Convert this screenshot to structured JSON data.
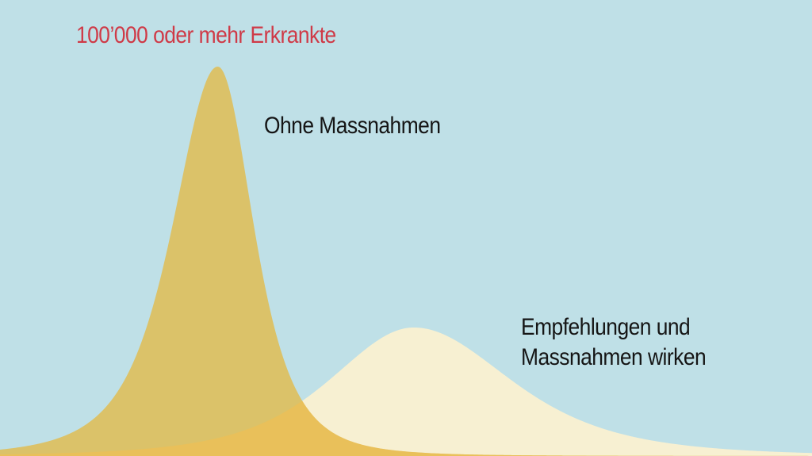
{
  "chart_data": {
    "type": "area",
    "title": "100’000 oder mehr Erkrankte",
    "xlabel": "",
    "ylabel": "",
    "colors": {
      "background": "#bfe0e7",
      "title": "#cf3a47",
      "labels": "#151515"
    },
    "series": [
      {
        "name": "Ohne Massnahmen",
        "relative_peak": 1.0,
        "color": "#dcc164",
        "opacity": 0.97
      },
      {
        "name": "Empfehlungen und Massnahmen wirken",
        "relative_peak": 0.33,
        "color": "#fdf2cf",
        "opacity": 0.9
      }
    ]
  }
}
